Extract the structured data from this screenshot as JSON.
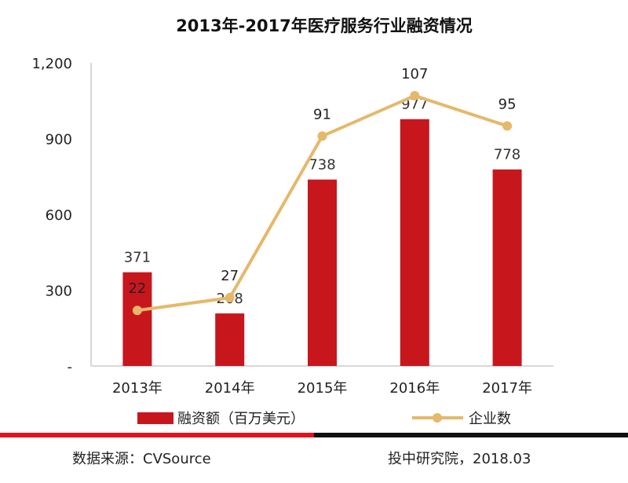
{
  "chart_data": {
    "type": "bar",
    "title": "2013年-2017年医疗服务行业融资情况",
    "categories": [
      "2013年",
      "2014年",
      "2015年",
      "2016年",
      "2017年"
    ],
    "series": [
      {
        "name": "融资额（百万美元）",
        "type": "bar",
        "axis": "left",
        "values": [
          371,
          208,
          738,
          977,
          778
        ],
        "color": "#c8161d"
      },
      {
        "name": "企业数",
        "type": "line",
        "axis": "right-hidden",
        "values": [
          22,
          27,
          91,
          107,
          95
        ],
        "color": "#e6b86a"
      }
    ],
    "y_ticks": [
      "-",
      "300",
      "600",
      "900",
      "1,200"
    ],
    "ylim": [
      0,
      1200
    ],
    "y2lim": [
      0,
      120
    ],
    "grid": false,
    "legend": "bottom"
  },
  "footer": {
    "source": "数据来源：CVSource",
    "publisher": "投中研究院，2018.03"
  },
  "colors": {
    "bar": "#c8161d",
    "line": "#e6b86a",
    "divider_left": "#e0141c",
    "divider_right": "#111111",
    "axis": "#bfbfbf"
  }
}
